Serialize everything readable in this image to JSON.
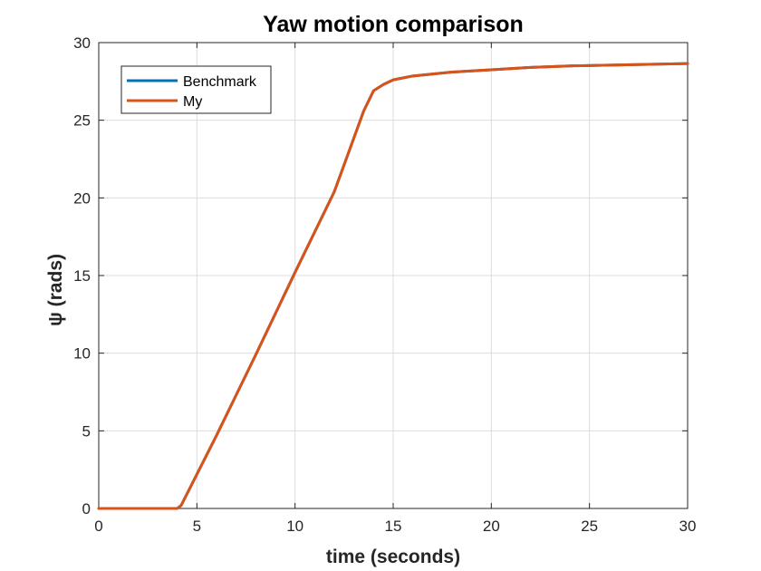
{
  "chart_data": {
    "type": "line",
    "title": "Yaw motion comparison",
    "xlabel": "time (seconds)",
    "ylabel": "ψ (rads)",
    "xlim": [
      0,
      30
    ],
    "ylim": [
      0,
      30
    ],
    "xticks": [
      0,
      5,
      10,
      15,
      20,
      25,
      30
    ],
    "yticks": [
      0,
      5,
      10,
      15,
      20,
      25,
      30
    ],
    "grid": true,
    "legend_position": "top-left",
    "series": [
      {
        "name": "Benchmark",
        "color": "#0072BD",
        "x": [
          0,
          4.0,
          4.2,
          6,
          8,
          10,
          12,
          13.5,
          14.0,
          14.5,
          15,
          16,
          18,
          20,
          22,
          24,
          26,
          28,
          30
        ],
        "y": [
          0,
          0,
          0.2,
          4.7,
          9.9,
          15.2,
          20.4,
          25.6,
          26.9,
          27.3,
          27.6,
          27.85,
          28.1,
          28.25,
          28.4,
          28.5,
          28.55,
          28.6,
          28.65
        ]
      },
      {
        "name": "My",
        "color": "#D95319",
        "x": [
          0,
          4.0,
          4.2,
          6,
          8,
          10,
          12,
          13.5,
          14.0,
          14.5,
          15,
          16,
          18,
          20,
          22,
          24,
          26,
          28,
          30
        ],
        "y": [
          0,
          0,
          0.2,
          4.7,
          9.9,
          15.2,
          20.4,
          25.6,
          26.9,
          27.3,
          27.6,
          27.85,
          28.1,
          28.25,
          28.4,
          28.5,
          28.55,
          28.6,
          28.65
        ]
      }
    ]
  }
}
